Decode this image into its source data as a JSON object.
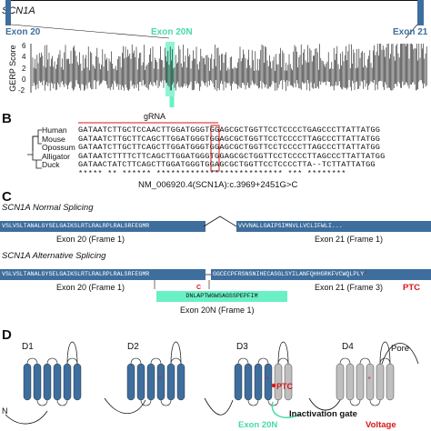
{
  "panel_a": {
    "gene_label": "SCN1A",
    "exon_left": "Exon 20",
    "exon_middle": "Exon 20N",
    "exon_right": "Exon 21",
    "gerp_axis_label": "GERP Score",
    "gerp_ticks": [
      "6",
      "4",
      "2",
      "0",
      "-2"
    ],
    "colors": {
      "exon": "#3e6e9e",
      "exon20n": "#49d9a8",
      "gerp": "#111111"
    }
  },
  "panel_b": {
    "letter": "B",
    "grna_label": "gRNA",
    "species": [
      "Human",
      "Mouse",
      "Opossum",
      "Alligator",
      "Duck"
    ],
    "sequences": [
      "GATAATCTTGCTCCAACTTGGATGGGTGGAGCGCTGGTTCCTCCCCTGAGCCCTTATTATGG",
      "GATAATCTTGCTTCAGCTTGGATGGGTGGAGCGCTGGTTCCTCCCCTTAGCCCTTATTATGG",
      "GATAATCTTGCTTCAGCTTGGATGGGTGGAGCGCTGGTTCCTCCCCTTAGCCCTTATTATGG",
      "GATAATCTTTTCTTCAGCTTGGATGGGTGGAGCGCTGGTTCCTCCCCTTAGCCCTTATTATGG",
      "GATAACTATCTTCAGCTTGGATGGGTGGAGCGCTGGTTCCTCCCCTTA--TCTTATTATGG"
    ],
    "conservation": "***** ** ****** ************************** *** ********",
    "variant_label": "NM_006920.4(SCN1A):c.3969+2451G>C"
  },
  "panel_c": {
    "letter": "C",
    "normal_title": "SCN1A Normal Splicing",
    "normal_left_seq": "VSLVSLTANALGYSELGAIKSLRTLRALRPLRALSRFEGMR",
    "normal_right_seq": "VVVNALLGAIPSIMNVLLVCLIFWLI...",
    "exon20_frame": "Exon 20 (Frame 1)",
    "exon21_frame1": "Exon 21 (Frame 1)",
    "alt_title": "SCN1A Alternative Splicing",
    "alt_left_seq": "VSLVSLTANALGYSELGAIKSLRTLRALRPLRALSRFEGMR",
    "alt_right_seq": "GGCECPFRSNSNIHECASGLSYILANFQHHGRKFVCWQLPLY",
    "alt_stop": "*",
    "exon21_frame3": "Exon 21 (Frame 3)",
    "ptc_label": "PTC",
    "exon20n_seq": "DNLAPTWGWSAGSSPEPFIM",
    "mutation_mark": "C",
    "exon20n_frame": "Exon 20N (Frame 1)"
  },
  "panel_d": {
    "letter": "D",
    "domains": [
      "D1",
      "D2",
      "D3",
      "D4"
    ],
    "pore_label": "Pore",
    "ptc_label": "PTC",
    "exon20n_label": "Exon 20N",
    "inactivation_label": "Inactivation gate",
    "voltage_label": "Voltage",
    "n_label": "N",
    "colors": {
      "helix_blue": "#3e6e9e",
      "helix_grey": "#bfbfbf",
      "ptc": "#d8161b"
    }
  }
}
